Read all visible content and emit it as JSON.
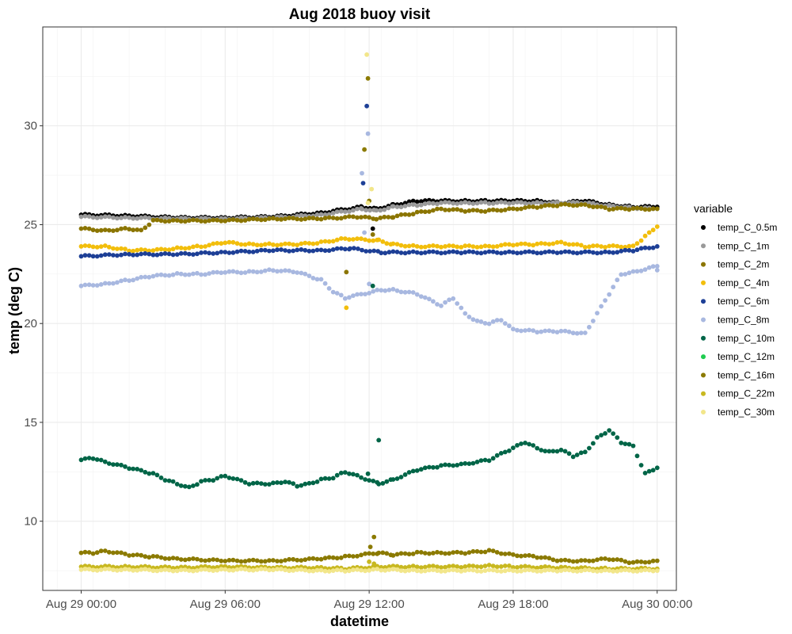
{
  "chart_data": {
    "type": "scatter",
    "title": "Aug 2018 buoy visit",
    "xlabel": "datetime",
    "ylabel": "temp (deg C)",
    "x_unit": "hours",
    "xlim": [
      -1.6,
      24.8
    ],
    "ylim": [
      6.5,
      35
    ],
    "x_ticks": [
      {
        "value": 0,
        "label": "Aug 29 00:00"
      },
      {
        "value": 6,
        "label": "Aug 29 06:00"
      },
      {
        "value": 12,
        "label": "Aug 29 12:00"
      },
      {
        "value": 18,
        "label": "Aug 29 18:00"
      },
      {
        "value": 24,
        "label": "Aug 30 00:00"
      }
    ],
    "y_ticks": [
      10,
      15,
      20,
      25,
      30
    ],
    "grid": true,
    "legend_title": "variable",
    "legend_position": "right",
    "series": [
      {
        "name": "temp_C_0.5m",
        "color": "#000000",
        "points": [
          [
            0,
            25.5
          ],
          [
            2,
            25.45
          ],
          [
            4,
            25.35
          ],
          [
            6,
            25.35
          ],
          [
            8,
            25.4
          ],
          [
            10,
            25.6
          ],
          [
            11.7,
            25.9
          ],
          [
            12.3,
            25.8
          ],
          [
            13,
            26.0
          ],
          [
            14,
            26.2
          ],
          [
            15,
            26.2
          ],
          [
            16,
            26.2
          ],
          [
            17,
            26.2
          ],
          [
            18,
            26.2
          ],
          [
            19,
            26.2
          ],
          [
            20,
            26.1
          ],
          [
            21,
            26.2
          ],
          [
            22,
            26.0
          ],
          [
            23,
            25.9
          ],
          [
            24,
            25.9
          ]
        ],
        "extra": [
          [
            12.15,
            24.8
          ]
        ]
      },
      {
        "name": "temp_C_1m",
        "color": "#999999",
        "points": [
          [
            0,
            25.4
          ],
          [
            2,
            25.35
          ],
          [
            4,
            25.3
          ],
          [
            6,
            25.3
          ],
          [
            8,
            25.35
          ],
          [
            10,
            25.5
          ],
          [
            11.7,
            25.8
          ],
          [
            12.3,
            25.7
          ],
          [
            13,
            25.9
          ],
          [
            14,
            26.0
          ],
          [
            15,
            26.1
          ],
          [
            16,
            26.1
          ],
          [
            17,
            26.1
          ],
          [
            18,
            26.1
          ],
          [
            19,
            26.1
          ],
          [
            20,
            26.1
          ],
          [
            21,
            26.1
          ],
          [
            22,
            25.95
          ],
          [
            23,
            25.85
          ],
          [
            24,
            25.8
          ]
        ],
        "extra": []
      },
      {
        "name": "temp_C_2m",
        "color": "#8B7500",
        "points": [
          [
            0,
            24.8
          ],
          [
            1,
            24.7
          ],
          [
            2,
            24.8
          ],
          [
            2.5,
            24.7
          ],
          [
            3,
            25.2
          ],
          [
            4,
            25.2
          ],
          [
            6,
            25.2
          ],
          [
            8,
            25.3
          ],
          [
            10,
            25.3
          ],
          [
            11.5,
            25.4
          ],
          [
            12.3,
            25.3
          ],
          [
            13,
            25.4
          ],
          [
            14,
            25.6
          ],
          [
            15,
            25.8
          ],
          [
            16,
            25.7
          ],
          [
            17,
            25.7
          ],
          [
            18,
            25.8
          ],
          [
            19,
            25.9
          ],
          [
            20,
            26.0
          ],
          [
            21,
            26.0
          ],
          [
            22,
            25.8
          ],
          [
            23,
            25.8
          ],
          [
            24,
            25.8
          ]
        ],
        "extra": [
          [
            11.05,
            22.6
          ],
          [
            12.15,
            24.5
          ]
        ]
      },
      {
        "name": "temp_C_4m",
        "color": "#F2BE0C",
        "points": [
          [
            0,
            23.9
          ],
          [
            1,
            23.9
          ],
          [
            2,
            23.7
          ],
          [
            3,
            23.7
          ],
          [
            4,
            23.8
          ],
          [
            5,
            23.9
          ],
          [
            6,
            24.1
          ],
          [
            7,
            24.0
          ],
          [
            8,
            24.0
          ],
          [
            9,
            24.0
          ],
          [
            10,
            24.1
          ],
          [
            11,
            24.3
          ],
          [
            12.4,
            24.2
          ],
          [
            13,
            24.0
          ],
          [
            14,
            23.9
          ],
          [
            15,
            23.9
          ],
          [
            16,
            23.9
          ],
          [
            17,
            23.9
          ],
          [
            18,
            24.0
          ],
          [
            19,
            24.0
          ],
          [
            20,
            24.1
          ],
          [
            21,
            23.9
          ],
          [
            22,
            23.9
          ],
          [
            23,
            23.9
          ],
          [
            23.5,
            24.4
          ],
          [
            24,
            24.9
          ]
        ],
        "extra": [
          [
            11.05,
            20.8
          ]
        ]
      },
      {
        "name": "temp_C_6m",
        "color": "#1D3F96",
        "points": [
          [
            0,
            23.4
          ],
          [
            2,
            23.5
          ],
          [
            4,
            23.5
          ],
          [
            6,
            23.6
          ],
          [
            8,
            23.7
          ],
          [
            10,
            23.7
          ],
          [
            11.2,
            23.8
          ],
          [
            12.5,
            23.6
          ],
          [
            14,
            23.6
          ],
          [
            16,
            23.6
          ],
          [
            18,
            23.6
          ],
          [
            20,
            23.6
          ],
          [
            22,
            23.6
          ],
          [
            23,
            23.7
          ],
          [
            24,
            23.9
          ]
        ],
        "extra": [
          [
            11.9,
            31.0
          ],
          [
            11.75,
            27.1
          ]
        ]
      },
      {
        "name": "temp_C_8m",
        "color": "#A8B8E0",
        "points": [
          [
            0,
            21.9
          ],
          [
            1,
            22.0
          ],
          [
            2,
            22.2
          ],
          [
            3,
            22.4
          ],
          [
            4,
            22.5
          ],
          [
            5,
            22.5
          ],
          [
            6,
            22.6
          ],
          [
            7,
            22.6
          ],
          [
            8,
            22.7
          ],
          [
            9,
            22.6
          ],
          [
            10,
            22.2
          ],
          [
            10.5,
            21.6
          ],
          [
            11,
            21.3
          ],
          [
            12.5,
            21.7
          ],
          [
            13,
            21.7
          ],
          [
            14,
            21.5
          ],
          [
            15,
            20.9
          ],
          [
            15.5,
            21.3
          ],
          [
            16,
            20.5
          ],
          [
            16.5,
            20.1
          ],
          [
            17,
            20.0
          ],
          [
            17.5,
            20.2
          ],
          [
            18,
            19.7
          ],
          [
            19,
            19.6
          ],
          [
            20,
            19.6
          ],
          [
            21,
            19.5
          ],
          [
            21.5,
            20.5
          ],
          [
            22,
            21.5
          ],
          [
            22.5,
            22.5
          ],
          [
            23,
            22.6
          ],
          [
            24,
            22.9
          ],
          [
            24,
            22.7
          ]
        ],
        "extra": [
          [
            11.95,
            29.6
          ],
          [
            11.7,
            27.6
          ],
          [
            11.8,
            24.6
          ],
          [
            12.0,
            22.0
          ]
        ]
      },
      {
        "name": "temp_C_10m",
        "color": "#006547",
        "points": [
          [
            0,
            13.1
          ],
          [
            0.5,
            13.2
          ],
          [
            1,
            13.0
          ],
          [
            2,
            12.7
          ],
          [
            3,
            12.4
          ],
          [
            3.5,
            12.1
          ],
          [
            4,
            11.9
          ],
          [
            4.5,
            11.7
          ],
          [
            5,
            12.0
          ],
          [
            5.5,
            12.1
          ],
          [
            6,
            12.3
          ],
          [
            7,
            11.9
          ],
          [
            8,
            11.9
          ],
          [
            8.5,
            12.0
          ],
          [
            9,
            11.8
          ],
          [
            9.5,
            11.9
          ],
          [
            10,
            12.1
          ],
          [
            10.5,
            12.2
          ],
          [
            11,
            12.5
          ],
          [
            11.5,
            12.3
          ],
          [
            12.4,
            11.9
          ],
          [
            13,
            12.1
          ],
          [
            14,
            12.6
          ],
          [
            15,
            12.8
          ],
          [
            16,
            12.9
          ],
          [
            17,
            13.1
          ],
          [
            18,
            13.7
          ],
          [
            18.5,
            14.0
          ],
          [
            19,
            13.7
          ],
          [
            19.5,
            13.5
          ],
          [
            20,
            13.6
          ],
          [
            20.5,
            13.3
          ],
          [
            21,
            13.5
          ],
          [
            21.5,
            14.2
          ],
          [
            22,
            14.6
          ],
          [
            22.5,
            14.0
          ],
          [
            23,
            13.8
          ],
          [
            23.5,
            12.4
          ],
          [
            24,
            12.7
          ]
        ],
        "extra": [
          [
            11.95,
            12.4
          ],
          [
            12.4,
            14.1
          ],
          [
            12.15,
            21.9
          ]
        ]
      },
      {
        "name": "temp_C_12m",
        "color": "#1FCC4F",
        "points": [],
        "extra": []
      },
      {
        "name": "temp_C_16m",
        "color": "#8B7A00",
        "points": [
          [
            0,
            8.4
          ],
          [
            0.5,
            8.4
          ],
          [
            1,
            8.5
          ],
          [
            2,
            8.3
          ],
          [
            3,
            8.2
          ],
          [
            4,
            8.1
          ],
          [
            6,
            8.0
          ],
          [
            8,
            8.0
          ],
          [
            10,
            8.1
          ],
          [
            11,
            8.2
          ],
          [
            12.4,
            8.4
          ],
          [
            13,
            8.3
          ],
          [
            14,
            8.4
          ],
          [
            15,
            8.4
          ],
          [
            16,
            8.4
          ],
          [
            17,
            8.5
          ],
          [
            18,
            8.3
          ],
          [
            19,
            8.2
          ],
          [
            20,
            8.0
          ],
          [
            21,
            8.0
          ],
          [
            22,
            8.1
          ],
          [
            23,
            7.9
          ],
          [
            24,
            8.0
          ]
        ],
        "extra": [
          [
            12.05,
            8.7
          ],
          [
            12.2,
            9.2
          ],
          [
            11.95,
            32.4
          ],
          [
            11.8,
            28.8
          ],
          [
            12.0,
            26.2
          ]
        ]
      },
      {
        "name": "temp_C_22m",
        "color": "#C8B820",
        "points": [
          [
            0,
            7.7
          ],
          [
            2,
            7.7
          ],
          [
            4,
            7.65
          ],
          [
            6,
            7.7
          ],
          [
            8,
            7.65
          ],
          [
            10,
            7.65
          ],
          [
            11,
            7.6
          ],
          [
            12.5,
            7.7
          ],
          [
            14,
            7.7
          ],
          [
            16,
            7.7
          ],
          [
            17,
            7.75
          ],
          [
            18,
            7.7
          ],
          [
            20,
            7.65
          ],
          [
            22,
            7.6
          ],
          [
            24,
            7.6
          ]
        ],
        "extra": [
          [
            12.0,
            7.95
          ],
          [
            12.2,
            7.85
          ]
        ]
      },
      {
        "name": "temp_C_30m",
        "color": "#F2E68A",
        "points": [
          [
            0,
            7.55
          ],
          [
            2,
            7.55
          ],
          [
            4,
            7.5
          ],
          [
            6,
            7.55
          ],
          [
            8,
            7.55
          ],
          [
            10,
            7.5
          ],
          [
            11,
            7.5
          ],
          [
            12.5,
            7.55
          ],
          [
            14,
            7.5
          ],
          [
            16,
            7.5
          ],
          [
            18,
            7.5
          ],
          [
            20,
            7.5
          ],
          [
            22,
            7.5
          ],
          [
            24,
            7.5
          ]
        ],
        "extra": [
          [
            11.9,
            33.6
          ],
          [
            12.1,
            26.8
          ],
          [
            11.95,
            26.1
          ]
        ]
      }
    ]
  }
}
